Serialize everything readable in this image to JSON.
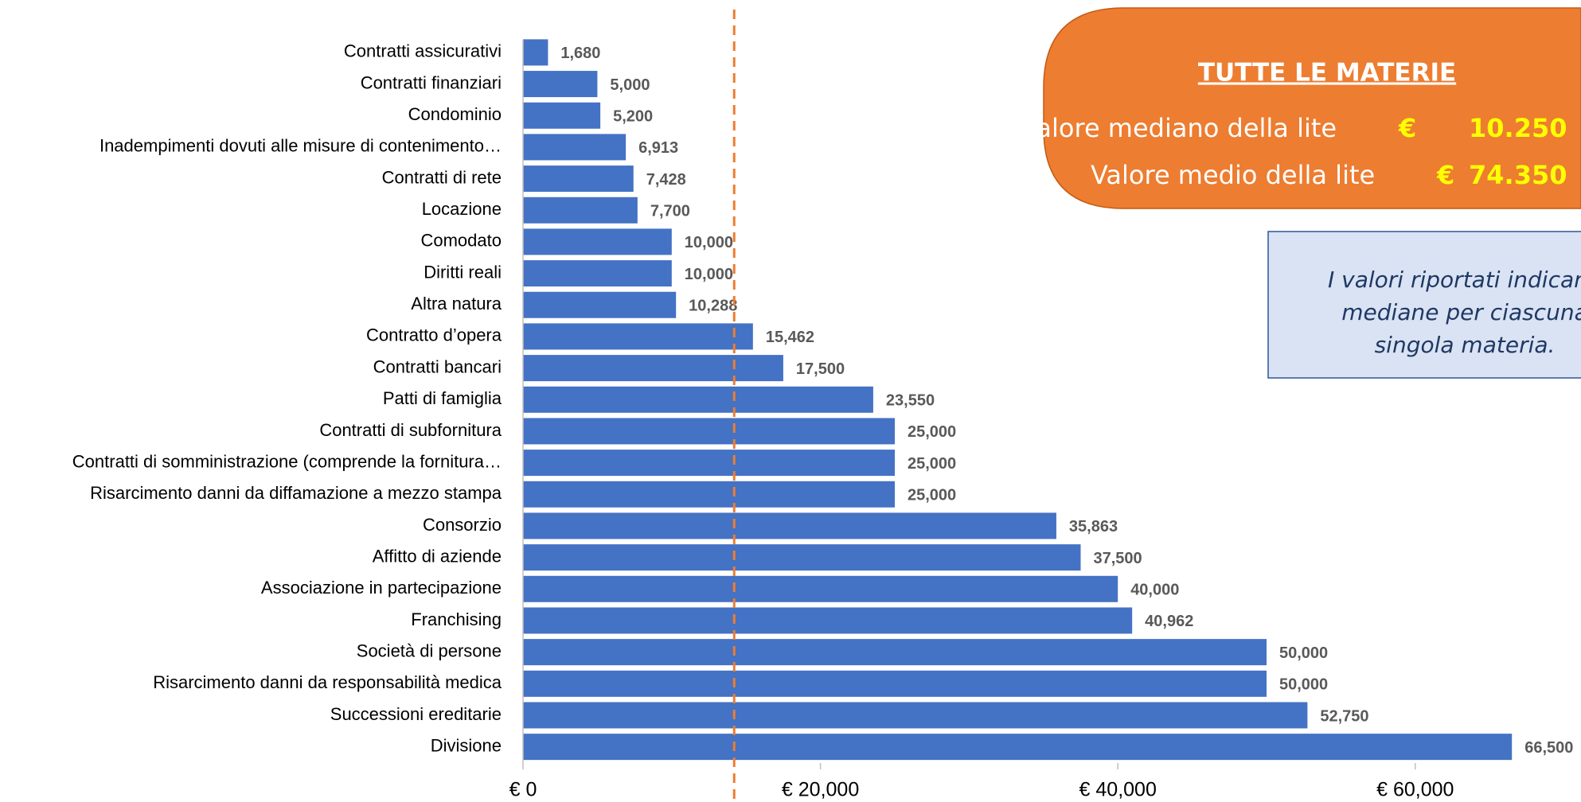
{
  "chart_data": {
    "type": "bar",
    "orientation": "horizontal",
    "categories": [
      "Contratti assicurativi",
      "Contratti finanziari",
      "Condominio",
      "Inadempimenti dovuti alle misure di contenimento…",
      "Contratti di rete",
      "Locazione",
      "Comodato",
      "Diritti reali",
      "Altra natura",
      "Contratto d’opera",
      "Contratti bancari",
      "Patti di famiglia",
      "Contratti di subfornitura",
      "Contratti di somministrazione (comprende la fornitura…",
      "Risarcimento danni da diffamazione a mezzo stampa",
      "Consorzio",
      "Affitto di aziende",
      "Associazione in partecipazione",
      "Franchising",
      "Società di persone",
      "Risarcimento danni da responsabilità medica",
      "Successioni ereditarie",
      "Divisione"
    ],
    "values": [
      1680,
      5000,
      5200,
      6913,
      7428,
      7700,
      10000,
      10000,
      10288,
      15462,
      17500,
      23550,
      25000,
      25000,
      25000,
      35863,
      37500,
      40000,
      40962,
      50000,
      50000,
      52750,
      66500
    ],
    "value_labels": [
      "1,680",
      "5,000",
      "5,200",
      "6,913",
      "7,428",
      "7,700",
      "10,000",
      "10,000",
      "10,288",
      "15,462",
      "17,500",
      "23,550",
      "25,000",
      "25,000",
      "25,000",
      "35,863",
      "37,500",
      "40,000",
      "40,962",
      "50,000",
      "50,000",
      "52,750",
      "66,500"
    ],
    "color": "#4472c4",
    "xlim": [
      0,
      70000
    ],
    "xticks": [
      {
        "value": 0,
        "label": "€ 0"
      },
      {
        "value": 20000,
        "label": "€ 20,000"
      },
      {
        "value": 40000,
        "label": "€ 40,000"
      },
      {
        "value": 60000,
        "label": "€ 60,000"
      }
    ],
    "reference_line": 14200,
    "reference_color": "#ed7d31",
    "grid": false
  },
  "summary_box": {
    "title": "TUTTE LE MATERIE",
    "median_label": "Valore mediano della lite",
    "median_currency": "€",
    "median_value": "10.250",
    "mean_label": "Valore medio della lite",
    "mean_currency": "€",
    "mean_value": "74.350"
  },
  "note_box": {
    "lines": [
      "I valori riportati indicano",
      "mediane per ciascuna",
      "singola materia."
    ]
  }
}
